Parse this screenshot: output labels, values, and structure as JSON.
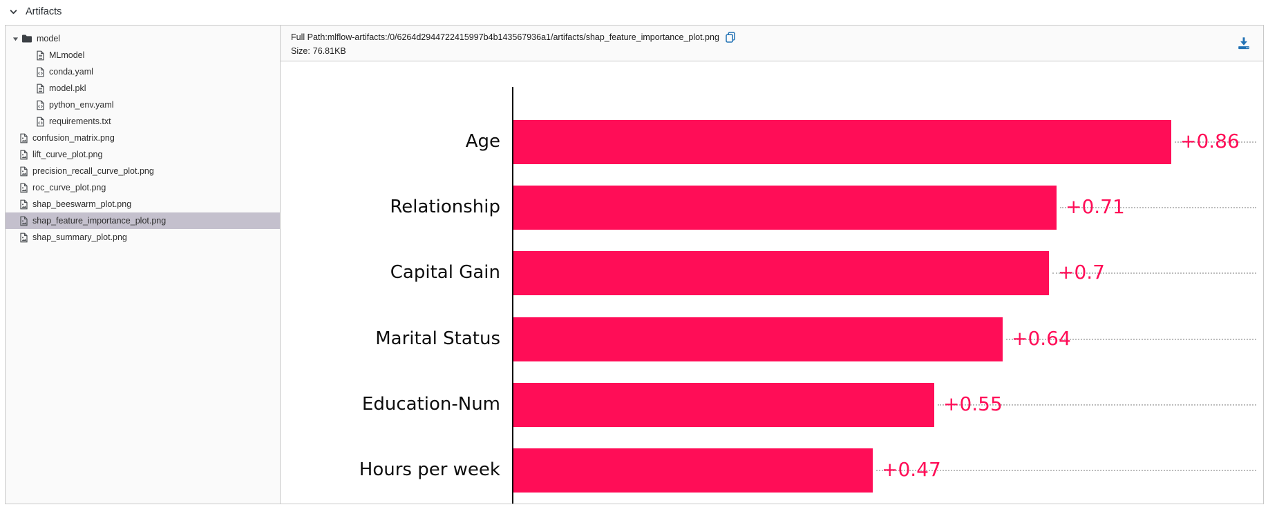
{
  "header": {
    "title": "Artifacts"
  },
  "sidebar": {
    "tree": [
      {
        "label": "model",
        "type": "folder",
        "indent": 0,
        "expanded": true,
        "icon": "folder-icon"
      },
      {
        "label": "MLmodel",
        "type": "file-text",
        "indent": 1,
        "icon": "file-text-icon"
      },
      {
        "label": "conda.yaml",
        "type": "file-code",
        "indent": 1,
        "icon": "file-code-icon"
      },
      {
        "label": "model.pkl",
        "type": "file-text",
        "indent": 1,
        "icon": "file-text-icon"
      },
      {
        "label": "python_env.yaml",
        "type": "file-code",
        "indent": 1,
        "icon": "file-code-icon"
      },
      {
        "label": "requirements.txt",
        "type": "file-code",
        "indent": 1,
        "icon": "file-code-icon"
      },
      {
        "label": "confusion_matrix.png",
        "type": "file-image",
        "indent": 0,
        "icon": "file-image-icon"
      },
      {
        "label": "lift_curve_plot.png",
        "type": "file-image",
        "indent": 0,
        "icon": "file-image-icon"
      },
      {
        "label": "precision_recall_curve_plot.png",
        "type": "file-image",
        "indent": 0,
        "icon": "file-image-icon"
      },
      {
        "label": "roc_curve_plot.png",
        "type": "file-image",
        "indent": 0,
        "icon": "file-image-icon"
      },
      {
        "label": "shap_beeswarm_plot.png",
        "type": "file-image",
        "indent": 0,
        "icon": "file-image-icon"
      },
      {
        "label": "shap_feature_importance_plot.png",
        "type": "file-image",
        "indent": 0,
        "icon": "file-image-icon",
        "selected": true
      },
      {
        "label": "shap_summary_plot.png",
        "type": "file-image",
        "indent": 0,
        "icon": "file-image-icon"
      }
    ]
  },
  "info_bar": {
    "full_path_label": "Full Path:",
    "full_path_value": "mlflow-artifacts:/0/6264d2944722415997b4b143567936a1/artifacts/shap_feature_importance_plot.png",
    "size_label": "Size:",
    "size_value": "76.81KB"
  },
  "chart_data": {
    "type": "bar",
    "orientation": "horizontal",
    "title": "",
    "xlabel": "",
    "ylabel": "",
    "categories": [
      "Age",
      "Relationship",
      "Capital Gain",
      "Marital Status",
      "Education-Num",
      "Hours per week"
    ],
    "values": [
      0.86,
      0.71,
      0.7,
      0.64,
      0.55,
      0.47
    ],
    "value_labels": [
      "+0.86",
      "+0.71",
      "+0.7",
      "+0.64",
      "+0.55",
      "+0.47"
    ],
    "xlim": [
      0,
      0.97
    ],
    "bar_color": "#ff0d57",
    "grid": false,
    "legend": "none",
    "layout_hint": "horizontal SHAP mean-importance bars with dotted leader lines to right edge; x axis cropped at image bottom"
  },
  "colors": {
    "accent_blue": "#2272b4",
    "selected_row_bg": "#c4c0cd",
    "panel_bg": "#fafafa",
    "border": "#c9c9c9"
  }
}
